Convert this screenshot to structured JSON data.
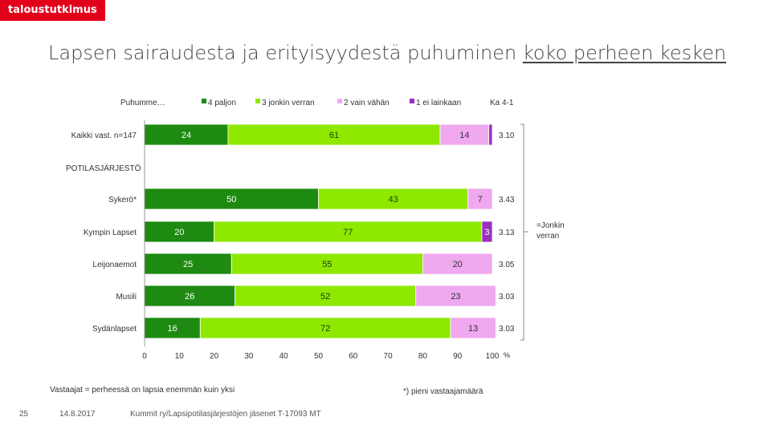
{
  "brand": "taloustutkimus",
  "title_main": "Lapsen sairaudesta ja erityisyydestä puhuminen ",
  "title_underlined": "koko perheen kesken",
  "legend_header": "Puhumme…",
  "ka_label": "Ka 4-1",
  "section_label": "POTILASJÄRJESTÖ",
  "side_note": "=Jonkin\nverran",
  "bottom_note": "Vastaajat = perheessä on lapsia enemmän kuin yksi",
  "small_sample_note": "*) pieni vastaajamäärä",
  "footer": {
    "page_number": "25",
    "date": "14.8.2017",
    "source": "Kummit ry/Lapsipotilasjärjestöjen jäsenet T-17093 MT"
  },
  "chart_data": {
    "type": "bar",
    "orientation": "horizontal",
    "stacked": true,
    "title": "Lapsen sairaudesta ja erityisyydestä puhuminen koko perheen kesken",
    "xlim": [
      0,
      100
    ],
    "x_ticks": [
      "0",
      "10",
      "20",
      "30",
      "40",
      "50",
      "60",
      "70",
      "80",
      "90",
      "100"
    ],
    "x_unit": "%",
    "categories": [
      "Kaikki vast. n=147",
      "Sykerö*",
      "Kympin Lapset",
      "Leijonaemot",
      "Musili",
      "Sydänlapset"
    ],
    "series": [
      {
        "name": "4 paljon",
        "color": "#1e8a12",
        "values": [
          24,
          50,
          20,
          25,
          26,
          16
        ]
      },
      {
        "name": "3 jonkin verran",
        "color": "#8ee800",
        "values": [
          61,
          43,
          77,
          55,
          52,
          72
        ]
      },
      {
        "name": "2 vain vähän",
        "color": "#f0a8ef",
        "values": [
          14,
          7,
          0,
          20,
          23,
          13
        ]
      },
      {
        "name": "1 ei lainkaan",
        "color": "#9b2fbf",
        "values": [
          1,
          0,
          3,
          0,
          0,
          0
        ]
      }
    ],
    "value_labels": [
      [
        "24",
        "61",
        "14",
        ""
      ],
      [
        "50",
        "43",
        "7",
        ""
      ],
      [
        "20",
        "77",
        "",
        "3"
      ],
      [
        "25",
        "55",
        "20",
        ""
      ],
      [
        "26",
        "52",
        "23",
        ""
      ],
      [
        "16",
        "72",
        "13",
        ""
      ]
    ],
    "averages": [
      "3.10",
      "3.43",
      "3.13",
      "3.05",
      "3.03",
      "3.03"
    ]
  }
}
